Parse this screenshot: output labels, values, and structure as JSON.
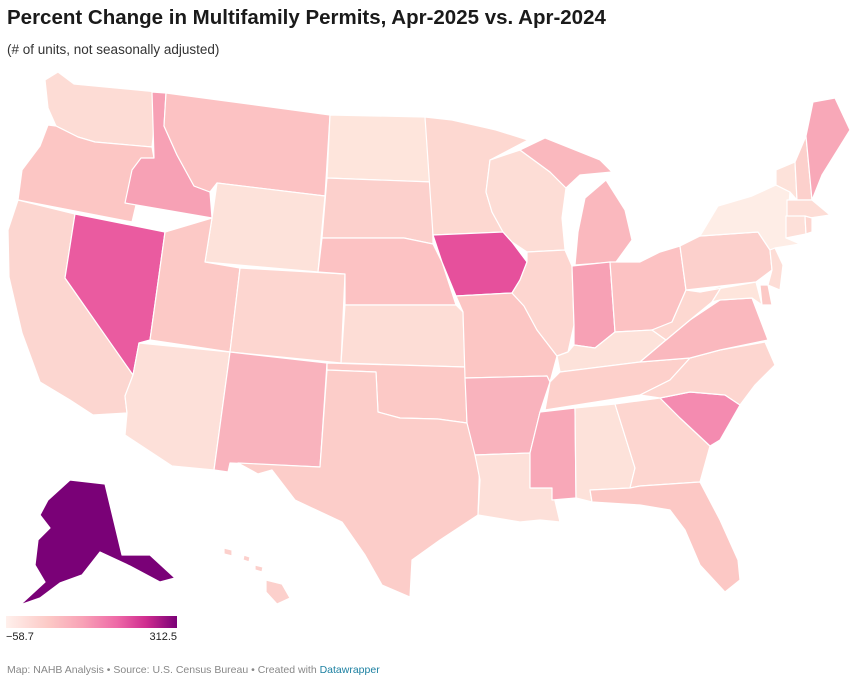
{
  "header": {
    "title": "Percent Change in Multifamily Permits, Apr-2025 vs. Apr-2024",
    "subtitle": "(# of units, not seasonally adjusted)"
  },
  "legend": {
    "min_label": "−58.7",
    "max_label": "312.5",
    "min_value": -58.7,
    "max_value": 312.5
  },
  "colors": {
    "scale_low": "#fff0ec",
    "scale_mid": "#f8a1b6",
    "scale_high": "#7a0177",
    "border": "#ffffff",
    "footer_link": "#1d81a2"
  },
  "footer": {
    "text": "Map: NAHB Analysis • Source: U.S. Census Bureau • Created with ",
    "link_text": "Datawrapper"
  },
  "map": {
    "states": [
      {
        "name": "WA",
        "color": "#fddcd5"
      },
      {
        "name": "OR",
        "color": "#fcc6c4"
      },
      {
        "name": "CA",
        "color": "#fcd6d0"
      },
      {
        "name": "NV",
        "color": "#ea5ba0"
      },
      {
        "name": "ID",
        "color": "#f7a1b5"
      },
      {
        "name": "MT",
        "color": "#fcc2c3"
      },
      {
        "name": "WY",
        "color": "#fde2da"
      },
      {
        "name": "UT",
        "color": "#fcc9c6"
      },
      {
        "name": "AZ",
        "color": "#fde0d9"
      },
      {
        "name": "CO",
        "color": "#fdd6d0"
      },
      {
        "name": "NM",
        "color": "#f9b3bd"
      },
      {
        "name": "ND",
        "color": "#fee5dc"
      },
      {
        "name": "SD",
        "color": "#fcd0cc"
      },
      {
        "name": "NE",
        "color": "#fcc2c3"
      },
      {
        "name": "KS",
        "color": "#fdddd6"
      },
      {
        "name": "OK",
        "color": "#fcc9c6"
      },
      {
        "name": "TX",
        "color": "#fccdc9"
      },
      {
        "name": "MN",
        "color": "#fdd8d1"
      },
      {
        "name": "IA",
        "color": "#e6509c"
      },
      {
        "name": "MO",
        "color": "#fcc6c4"
      },
      {
        "name": "AR",
        "color": "#f9b3bd"
      },
      {
        "name": "LA",
        "color": "#fde0d9"
      },
      {
        "name": "WI",
        "color": "#fdddd6"
      },
      {
        "name": "IL",
        "color": "#fdd6d0"
      },
      {
        "name": "MI",
        "color": "#fab8be"
      },
      {
        "name": "IN",
        "color": "#f7a1b5"
      },
      {
        "name": "OH",
        "color": "#fcc2c3"
      },
      {
        "name": "KY",
        "color": "#fde2da"
      },
      {
        "name": "TN",
        "color": "#fdd0cb"
      },
      {
        "name": "MS",
        "color": "#f8a8b8"
      },
      {
        "name": "AL",
        "color": "#fde2da"
      },
      {
        "name": "GA",
        "color": "#fdd6d0"
      },
      {
        "name": "FL",
        "color": "#fcc8c5"
      },
      {
        "name": "SC",
        "color": "#f48bb0"
      },
      {
        "name": "NC",
        "color": "#fdd6d0"
      },
      {
        "name": "VA",
        "color": "#fab8be"
      },
      {
        "name": "WV",
        "color": "#fdd8d1"
      },
      {
        "name": "PA",
        "color": "#fcd0cc"
      },
      {
        "name": "NY",
        "color": "#feede6"
      },
      {
        "name": "VT",
        "color": "#fde2da"
      },
      {
        "name": "NH",
        "color": "#fcd0cc"
      },
      {
        "name": "ME",
        "color": "#f8a8b8"
      },
      {
        "name": "MA",
        "color": "#fdddd6"
      },
      {
        "name": "CT",
        "color": "#fde0d9"
      },
      {
        "name": "RI",
        "color": "#fdd6d0"
      },
      {
        "name": "NJ",
        "color": "#fdddd6"
      },
      {
        "name": "DE",
        "color": "#fcc9c6"
      },
      {
        "name": "MD",
        "color": "#fee5dc"
      },
      {
        "name": "AK",
        "color": "#7a0177"
      },
      {
        "name": "HI",
        "color": "#fcd0cc"
      }
    ]
  }
}
